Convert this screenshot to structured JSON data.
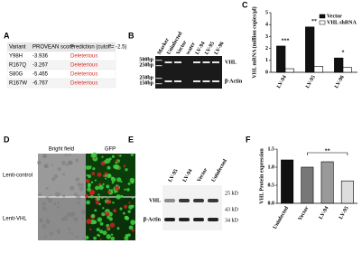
{
  "panel_labels": [
    "A",
    "B",
    "C",
    "D",
    "E",
    "F"
  ],
  "table": {
    "header": [
      "Variant",
      "PROVEAN score",
      "Prediction (cutoff= -2.5)"
    ],
    "rows": [
      [
        "Y98H",
        "-3.936",
        "Deleterious"
      ],
      [
        "R167Q",
        "-3.267",
        "Deleterious"
      ],
      [
        "S80G",
        "-5.465",
        "Deleterious"
      ],
      [
        "R167W",
        "-6.767",
        "Deleterious"
      ]
    ]
  },
  "gel": {
    "lanes": [
      "Marker",
      "Uninfected",
      "Vector",
      "water",
      "LV-94",
      "LV-95",
      "LV-96"
    ],
    "sizes": [
      "500bp",
      "250bp",
      "250bp",
      "150bp"
    ],
    "bands": [
      "VHL",
      "β-Actin"
    ]
  },
  "microscopy": {
    "columns": [
      "Bright field",
      "GFP"
    ],
    "rows": [
      "Lenti-control",
      "Lenti-VHL"
    ]
  },
  "blot": {
    "lanes": [
      "LV-95",
      "LV-94",
      "Vector",
      "Uninfected"
    ],
    "bands": [
      "VHL",
      "β-Actin"
    ],
    "sizes": [
      "25 kD",
      "43 kD",
      "34 kD"
    ]
  },
  "chart_data": [
    {
      "type": "bar",
      "y_label": "VHL mRNA (million copies/µl)",
      "categories": [
        "LV-94",
        "LV-95",
        "LV-96"
      ],
      "series": [
        {
          "name": "Vector",
          "color": "#111111",
          "values": [
            2.2,
            3.8,
            1.2
          ]
        },
        {
          "name": "VHL shRNA",
          "color": "#ffffff",
          "values": [
            0.3,
            0.5,
            0.4
          ]
        }
      ],
      "ylim": [
        0,
        5
      ],
      "yticks": [
        0,
        1,
        2,
        3,
        4,
        5
      ],
      "legend": "top-right",
      "annotations": [
        "***",
        "**",
        "*"
      ]
    },
    {
      "type": "bar",
      "y_label": "VHL Protein expression",
      "categories": [
        "Uninfected",
        "Vector",
        "LV-94",
        "LV-95"
      ],
      "series": [
        {
          "colors": [
            "#111111",
            "#777777",
            "#999999",
            "#dddddd"
          ],
          "values": [
            1.2,
            1.0,
            1.15,
            0.62
          ]
        }
      ],
      "ylim": [
        0,
        1.5
      ],
      "yticks": [
        {
          "value": 0,
          "label": "0.0"
        },
        0.5,
        {
          "value": 1,
          "label": "1.0"
        },
        1.5
      ],
      "annotations": [
        "**"
      ]
    }
  ]
}
